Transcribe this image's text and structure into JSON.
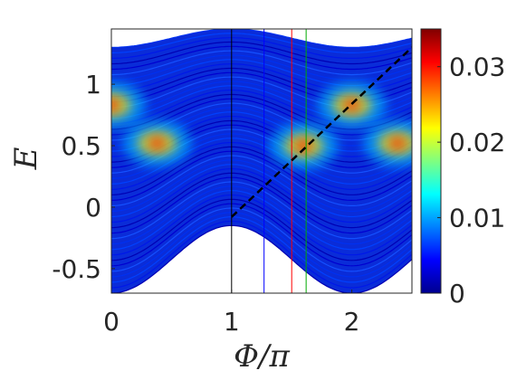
{
  "chart_data": {
    "type": "heatmap",
    "title": "",
    "xlabel": "Φ/π",
    "ylabel": "E",
    "xlim": [
      0,
      2.5
    ],
    "ylim": [
      -0.7,
      1.45
    ],
    "x_ticks": [
      0,
      1,
      2
    ],
    "x_tick_labels": [
      "0",
      "1",
      "2"
    ],
    "y_ticks": [
      -0.5,
      0,
      0.5,
      1
    ],
    "y_tick_labels": [
      "-0.5",
      "0",
      "0.5",
      "1"
    ],
    "colorbar": {
      "colormap": "jet",
      "range": [
        0,
        0.035
      ],
      "ticks": [
        0,
        0.01,
        0.02,
        0.03
      ],
      "tick_labels": [
        "0",
        "0.01",
        "0.02",
        "0.03"
      ]
    },
    "grid": false,
    "band_edges": {
      "upper_edge_min": 1.3,
      "upper_edge_max": 1.45,
      "lower_edge_min": -0.7,
      "lower_edge_max": -0.15,
      "period": 2
    },
    "hotspots": [
      {
        "x": 0.0,
        "y": 0.83,
        "intensity": 0.03
      },
      {
        "x": 0.38,
        "y": 0.52,
        "intensity": 0.033
      },
      {
        "x": 1.6,
        "y": 0.5,
        "intensity": 0.033
      },
      {
        "x": 2.0,
        "y": 0.83,
        "intensity": 0.03
      },
      {
        "x": 2.38,
        "y": 0.52,
        "intensity": 0.033
      }
    ],
    "vertical_lines": [
      {
        "x": 1.0,
        "color": "#000000"
      },
      {
        "x": 1.27,
        "color": "#0000ff"
      },
      {
        "x": 1.5,
        "color": "#ff0000"
      },
      {
        "x": 1.62,
        "color": "#00aa00"
      }
    ],
    "dashed_line": {
      "x": [
        1.0,
        2.5
      ],
      "y": [
        -0.08,
        1.3
      ],
      "color": "#000000"
    }
  }
}
